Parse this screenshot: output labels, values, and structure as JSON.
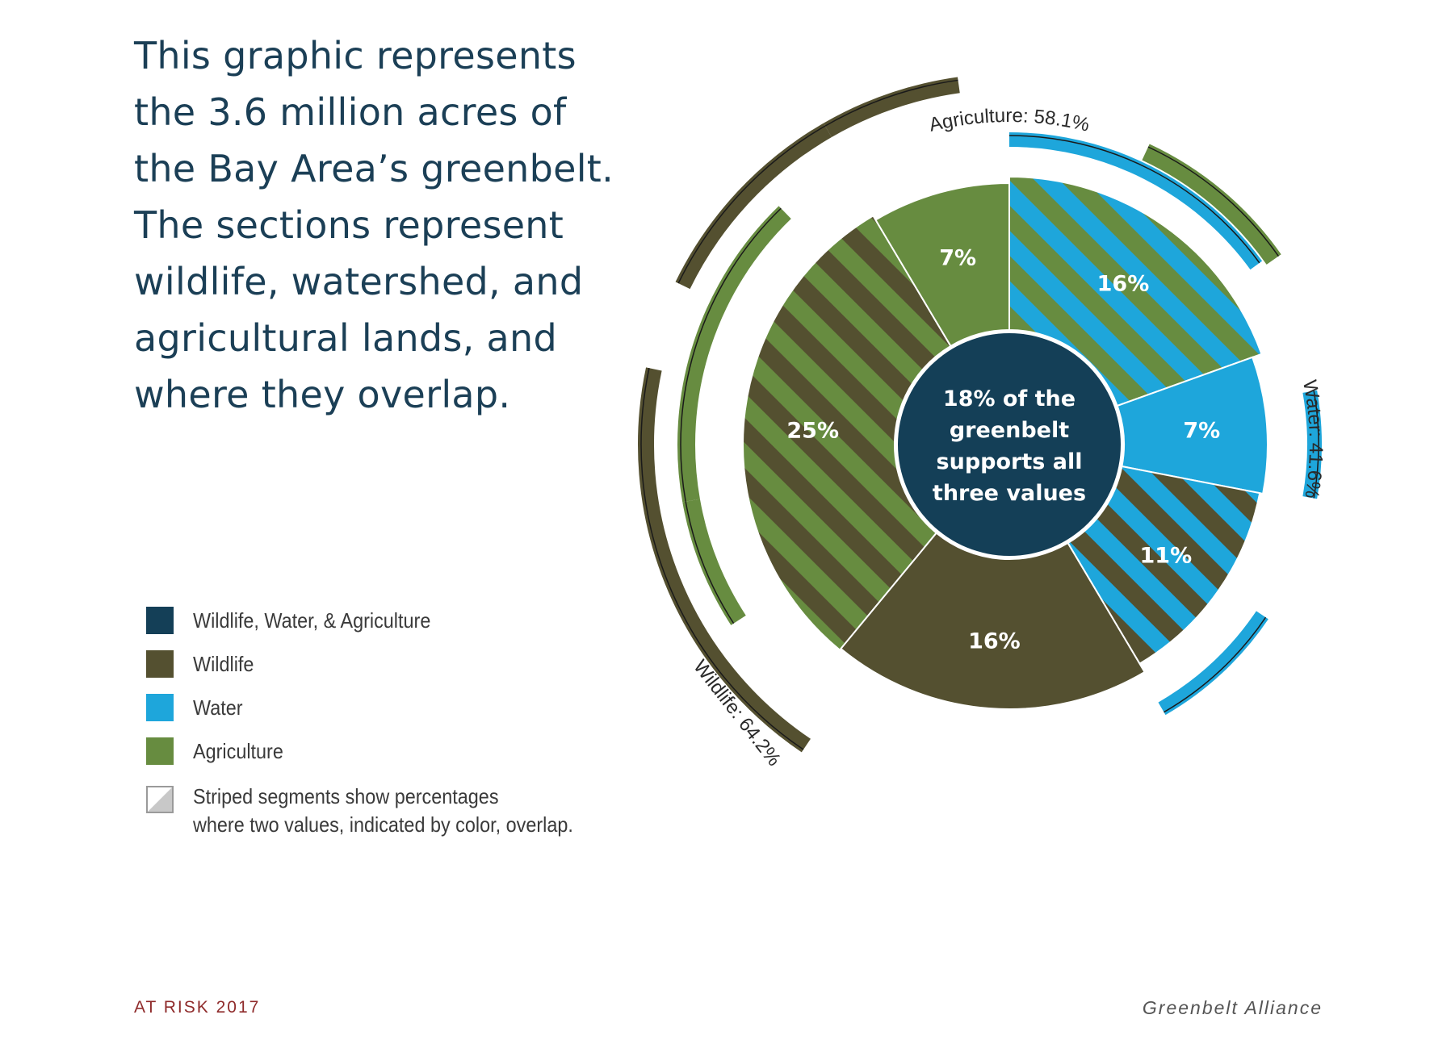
{
  "headline": [
    "This graphic represents",
    "the 3.6 million acres of",
    "the Bay Area’s greenbelt.",
    "The sections represent",
    "wildlife, watershed, and",
    "agricultural lands, and",
    "where they overlap."
  ],
  "legend": {
    "items": [
      {
        "label": "Wildlife, Water, & Agriculture",
        "color": "#143f57"
      },
      {
        "label": "Wildlife",
        "color": "#545030"
      },
      {
        "label": "Water",
        "color": "#1ea6db"
      },
      {
        "label": "Agriculture",
        "color": "#678c40"
      }
    ],
    "note_line1": "Striped segments show percentages",
    "note_line2": "where two values, indicated by color, overlap."
  },
  "footer": {
    "left": "AT RISK 2017",
    "right": "Greenbelt Alliance"
  },
  "chart_data": {
    "type": "pie",
    "subtype": "donut",
    "center_label": [
      "18% of the",
      "greenbelt",
      "supports all",
      "three values"
    ],
    "center_value": 18,
    "colors": {
      "wildlife": "#545030",
      "water": "#1ea6db",
      "agriculture": "#678c40",
      "all_three": "#143f57"
    },
    "segments": [
      {
        "label": "16%",
        "value": 16,
        "categories": [
          "agriculture",
          "water"
        ]
      },
      {
        "label": "7%",
        "value": 7,
        "categories": [
          "water"
        ]
      },
      {
        "label": "11%",
        "value": 11,
        "categories": [
          "water",
          "wildlife"
        ]
      },
      {
        "label": "16%",
        "value": 16,
        "categories": [
          "wildlife"
        ]
      },
      {
        "label": "25%",
        "value": 25,
        "categories": [
          "wildlife",
          "agriculture"
        ]
      },
      {
        "label": "7%",
        "value": 7,
        "categories": [
          "agriculture"
        ]
      }
    ],
    "totals": [
      {
        "label": "Agriculture: 58.1%",
        "category": "agriculture",
        "value": 58.1
      },
      {
        "label": "Water:  41.6%",
        "category": "water",
        "value": 41.6
      },
      {
        "label": "Wildlife: 64.2%",
        "category": "wildlife",
        "value": 64.2
      }
    ]
  }
}
